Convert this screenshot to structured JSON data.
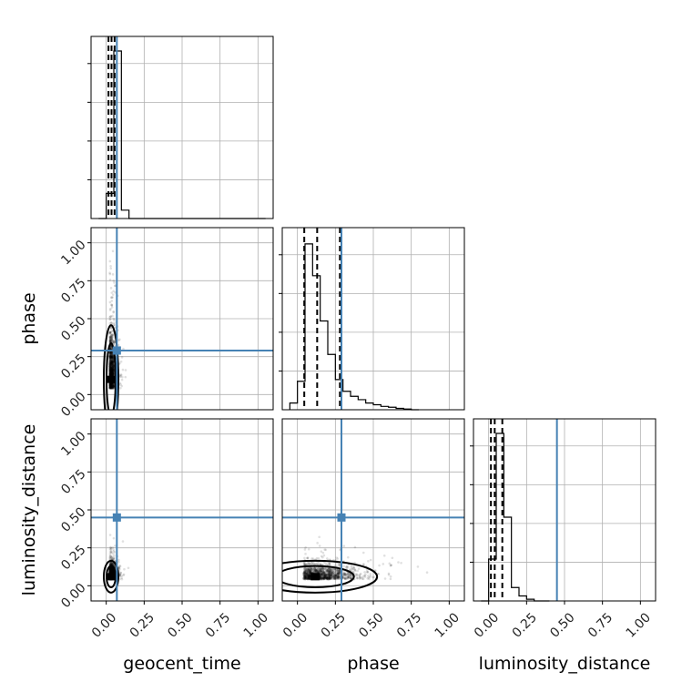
{
  "chart_data": {
    "type": "corner",
    "parameters": [
      "geocent_time",
      "phase",
      "luminosity_distance"
    ],
    "axis_range": [
      -0.1,
      1.1
    ],
    "ticks": [
      0.0,
      0.25,
      0.5,
      0.75,
      1.0
    ],
    "tick_labels": [
      "0.00",
      "0.25",
      "0.50",
      "0.75",
      "1.00"
    ],
    "grid": true,
    "truth_color": "#4682b4",
    "truths": {
      "geocent_time": 0.07,
      "phase": 0.29,
      "luminosity_distance": 0.45
    },
    "quantiles": {
      "geocent_time": [
        0.015,
        0.035,
        0.055
      ],
      "phase": [
        0.045,
        0.13,
        0.28
      ],
      "luminosity_distance": [
        0.015,
        0.04,
        0.09
      ]
    },
    "histograms": {
      "geocent_time": {
        "bin_edges": [
          -0.05,
          0.0,
          0.05,
          0.1,
          0.15,
          0.2,
          0.25,
          0.3,
          0.35,
          0.4,
          0.45,
          0.5,
          0.55,
          0.6,
          0.65,
          0.7,
          0.75,
          0.8,
          0.85,
          0.9,
          0.95,
          1.0,
          1.05
        ],
        "counts": [
          0.0,
          0.15,
          1.0,
          0.05,
          0.0,
          0.0,
          0.0,
          0.0,
          0.0,
          0.0,
          0.0,
          0.0,
          0.0,
          0.0,
          0.0,
          0.0,
          0.0,
          0.0,
          0.0,
          0.0,
          0.0,
          0.0
        ]
      },
      "phase": {
        "bin_edges": [
          -0.05,
          0.0,
          0.05,
          0.1,
          0.15,
          0.2,
          0.25,
          0.3,
          0.35,
          0.4,
          0.45,
          0.5,
          0.55,
          0.6,
          0.65,
          0.7,
          0.75,
          0.8
        ],
        "counts": [
          0.04,
          0.17,
          0.99,
          0.8,
          0.53,
          0.33,
          0.18,
          0.11,
          0.08,
          0.06,
          0.04,
          0.03,
          0.02,
          0.015,
          0.008,
          0.004,
          0.0
        ]
      },
      "luminosity_distance": {
        "bin_edges": [
          -0.05,
          0.0,
          0.05,
          0.1,
          0.15,
          0.2,
          0.25,
          0.3,
          0.35,
          0.4
        ],
        "counts": [
          0.0,
          0.25,
          1.0,
          0.5,
          0.08,
          0.03,
          0.01,
          0.0,
          0.0
        ]
      }
    },
    "posterior_bulk": {
      "geocent_time": {
        "mode": 0.03,
        "spread": 0.02
      },
      "phase": {
        "mode": 0.1,
        "spread": 0.17
      },
      "luminosity_distance": {
        "mode": 0.06,
        "spread": 0.05
      }
    }
  }
}
